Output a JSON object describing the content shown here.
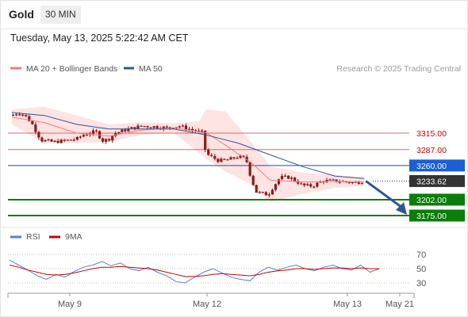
{
  "header": {
    "symbol": "Gold",
    "timeframe": "30 MIN",
    "timestamp": "Tuesday, May 13, 2025 5:22:42 AM CET"
  },
  "legend": {
    "ma20": "MA 20 + Bollinger Bands",
    "ma50": "MA 50",
    "credit": "Research © 2025 Trading Central",
    "rsi": "RSI",
    "ma9": "9MA"
  },
  "colors": {
    "candle": "#8b1a1a",
    "bollinger_band": "#fdd9d9",
    "ma20": "#f47c7c",
    "ma50": "#2e5597",
    "resistance": "#e06666",
    "pivot": "#1f4e9c",
    "support": "#0a7d0a",
    "current": "#333333",
    "arrow": "#2e5597",
    "rsi": "#5b7fd6",
    "rsi_ma": "#cc0000"
  },
  "chart_data": [
    {
      "type": "candlestick",
      "title": "Gold 30 MIN",
      "x_labels": [
        "May 9",
        "May 12",
        "May 13",
        "May 21"
      ],
      "price_levels": [
        {
          "value": 3315.0,
          "label": "3315.00",
          "role": "resistance"
        },
        {
          "value": 3287.0,
          "label": "3287.00",
          "role": "resistance"
        },
        {
          "value": 3260.0,
          "label": "3260.00",
          "role": "pivot"
        },
        {
          "value": 3233.62,
          "label": "3233.62",
          "role": "current"
        },
        {
          "value": 3202.0,
          "label": "3202.00",
          "role": "support"
        },
        {
          "value": 3175.0,
          "label": "3175.00",
          "role": "support"
        }
      ],
      "close_path": [
        {
          "day": 0.0,
          "price": 3345
        },
        {
          "day": 0.1,
          "price": 3350
        },
        {
          "day": 0.2,
          "price": 3345
        },
        {
          "day": 0.3,
          "price": 3333
        },
        {
          "day": 0.45,
          "price": 3303
        },
        {
          "day": 0.65,
          "price": 3300
        },
        {
          "day": 0.8,
          "price": 3302
        },
        {
          "day": 1.0,
          "price": 3305
        },
        {
          "day": 1.1,
          "price": 3312
        },
        {
          "day": 1.3,
          "price": 3318
        },
        {
          "day": 1.4,
          "price": 3302
        },
        {
          "day": 1.5,
          "price": 3305
        },
        {
          "day": 1.6,
          "price": 3315
        },
        {
          "day": 1.8,
          "price": 3322
        },
        {
          "day": 2.0,
          "price": 3327
        },
        {
          "day": 2.2,
          "price": 3326
        },
        {
          "day": 2.4,
          "price": 3324
        },
        {
          "day": 2.6,
          "price": 3327
        },
        {
          "day": 2.8,
          "price": 3320
        },
        {
          "day": 2.95,
          "price": 3316
        },
        {
          "day": 3.0,
          "price": 3280
        },
        {
          "day": 3.1,
          "price": 3274
        },
        {
          "day": 3.2,
          "price": 3268
        },
        {
          "day": 3.35,
          "price": 3270
        },
        {
          "day": 3.5,
          "price": 3275
        },
        {
          "day": 3.62,
          "price": 3272
        },
        {
          "day": 3.7,
          "price": 3238
        },
        {
          "day": 3.78,
          "price": 3215
        },
        {
          "day": 3.9,
          "price": 3212
        },
        {
          "day": 3.96,
          "price": 3210
        },
        {
          "day": 4.05,
          "price": 3225
        },
        {
          "day": 4.15,
          "price": 3240
        },
        {
          "day": 4.3,
          "price": 3240
        },
        {
          "day": 4.5,
          "price": 3226
        },
        {
          "day": 4.65,
          "price": 3225
        },
        {
          "day": 4.8,
          "price": 3234
        },
        {
          "day": 5.0,
          "price": 3234
        },
        {
          "day": 5.3,
          "price": 3231
        },
        {
          "day": 5.45,
          "price": 3233.62
        }
      ],
      "ma20": [
        {
          "day": 0.0,
          "price": 3342
        },
        {
          "day": 0.5,
          "price": 3333
        },
        {
          "day": 1.0,
          "price": 3315
        },
        {
          "day": 1.5,
          "price": 3310
        },
        {
          "day": 2.0,
          "price": 3320
        },
        {
          "day": 2.5,
          "price": 3324
        },
        {
          "day": 3.0,
          "price": 3316
        },
        {
          "day": 3.3,
          "price": 3295
        },
        {
          "day": 3.7,
          "price": 3265
        },
        {
          "day": 4.0,
          "price": 3235
        },
        {
          "day": 4.5,
          "price": 3232
        },
        {
          "day": 5.0,
          "price": 3233
        },
        {
          "day": 5.45,
          "price": 3232
        }
      ],
      "ma50": [
        {
          "day": 0.0,
          "price": 3350
        },
        {
          "day": 0.5,
          "price": 3345
        },
        {
          "day": 1.0,
          "price": 3330
        },
        {
          "day": 1.5,
          "price": 3322
        },
        {
          "day": 2.0,
          "price": 3322
        },
        {
          "day": 2.5,
          "price": 3322
        },
        {
          "day": 3.0,
          "price": 3312
        },
        {
          "day": 3.5,
          "price": 3298
        },
        {
          "day": 4.0,
          "price": 3278
        },
        {
          "day": 4.5,
          "price": 3258
        },
        {
          "day": 5.0,
          "price": 3242
        },
        {
          "day": 5.45,
          "price": 3238
        }
      ],
      "bollinger_upper": [
        {
          "day": 0.0,
          "price": 3355
        },
        {
          "day": 0.5,
          "price": 3360
        },
        {
          "day": 1.0,
          "price": 3345
        },
        {
          "day": 1.5,
          "price": 3330
        },
        {
          "day": 2.0,
          "price": 3333
        },
        {
          "day": 2.5,
          "price": 3332
        },
        {
          "day": 2.9,
          "price": 3335
        },
        {
          "day": 3.0,
          "price": 3355
        },
        {
          "day": 3.3,
          "price": 3352
        },
        {
          "day": 3.7,
          "price": 3300
        },
        {
          "day": 4.0,
          "price": 3258
        },
        {
          "day": 4.5,
          "price": 3248
        },
        {
          "day": 5.0,
          "price": 3244
        },
        {
          "day": 5.45,
          "price": 3240
        }
      ],
      "bollinger_lower": [
        {
          "day": 0.0,
          "price": 3330
        },
        {
          "day": 0.5,
          "price": 3298
        },
        {
          "day": 1.0,
          "price": 3298
        },
        {
          "day": 1.5,
          "price": 3300
        },
        {
          "day": 2.0,
          "price": 3312
        },
        {
          "day": 2.5,
          "price": 3316
        },
        {
          "day": 3.0,
          "price": 3272
        },
        {
          "day": 3.3,
          "price": 3250
        },
        {
          "day": 3.7,
          "price": 3228
        },
        {
          "day": 4.0,
          "price": 3198
        },
        {
          "day": 4.5,
          "price": 3212
        },
        {
          "day": 5.0,
          "price": 3222
        },
        {
          "day": 5.45,
          "price": 3225
        }
      ],
      "forecast_arrow": {
        "from_price": 3233.62,
        "to_price": 3175.0
      }
    },
    {
      "type": "line",
      "title": "RSI",
      "y_ticks": [
        70,
        50,
        30
      ],
      "ylim": [
        20,
        80
      ],
      "series": [
        {
          "name": "RSI",
          "values": [
            62,
            55,
            48,
            40,
            35,
            42,
            38,
            46,
            52,
            55,
            60,
            54,
            58,
            50,
            47,
            52,
            45,
            40,
            32,
            30,
            38,
            45,
            50,
            44,
            38,
            35,
            33,
            45,
            52,
            48,
            52,
            55,
            50,
            47,
            52,
            55,
            50,
            48,
            55,
            45,
            50
          ]
        },
        {
          "name": "9MA",
          "values": [
            55,
            52,
            48,
            45,
            42,
            41,
            42,
            44,
            47,
            50,
            52,
            52,
            53,
            52,
            51,
            50,
            48,
            45,
            42,
            39,
            39,
            40,
            42,
            43,
            42,
            41,
            40,
            42,
            45,
            47,
            48,
            50,
            50,
            49,
            50,
            51,
            51,
            50,
            51,
            50,
            50
          ]
        }
      ]
    }
  ]
}
